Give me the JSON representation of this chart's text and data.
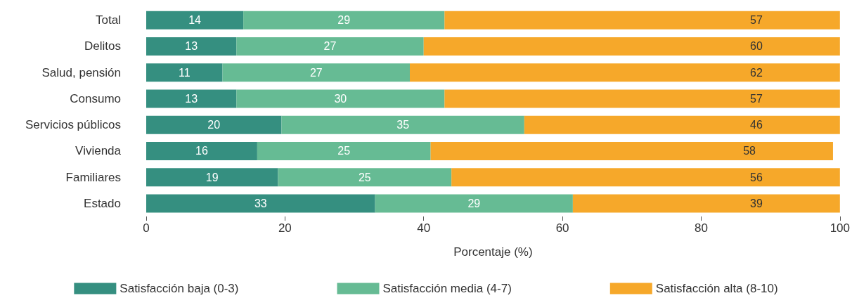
{
  "chart_data": {
    "type": "bar",
    "orientation": "horizontal",
    "stacked": true,
    "xlabel": "Porcentaje (%)",
    "categories": [
      "Total",
      "Delitos",
      "Salud, pensión",
      "Consumo",
      "Servicios públicos",
      "Vivienda",
      "Familiares",
      "Estado"
    ],
    "series": [
      {
        "name": "Satisfacción baja (0-3)",
        "color": "#358f80",
        "values": [
          14,
          13,
          11,
          13,
          19.5,
          16,
          19,
          33
        ],
        "value_labels": [
          "14",
          "13",
          "11",
          "13",
          "20",
          "16",
          "19",
          "33"
        ]
      },
      {
        "name": "Satisfacción media (4-7)",
        "color": "#66bb94",
        "values": [
          29,
          27,
          27,
          30,
          35,
          25,
          25,
          28.5
        ],
        "value_labels": [
          "29",
          "27",
          "27",
          "30",
          "35",
          "25",
          "25",
          "29"
        ]
      },
      {
        "name": "Satisfacción alta (8-10)",
        "color": "#f6a82a",
        "values": [
          57,
          60,
          62,
          57,
          45.5,
          58,
          56,
          38.5
        ],
        "value_labels": [
          "57",
          "60",
          "62",
          "57",
          "46",
          "58",
          "56",
          "39"
        ]
      }
    ],
    "xlim": [
      0,
      100
    ],
    "xticks": [
      0,
      20,
      40,
      60,
      80,
      100
    ],
    "grid": false,
    "legend": "bottom"
  }
}
